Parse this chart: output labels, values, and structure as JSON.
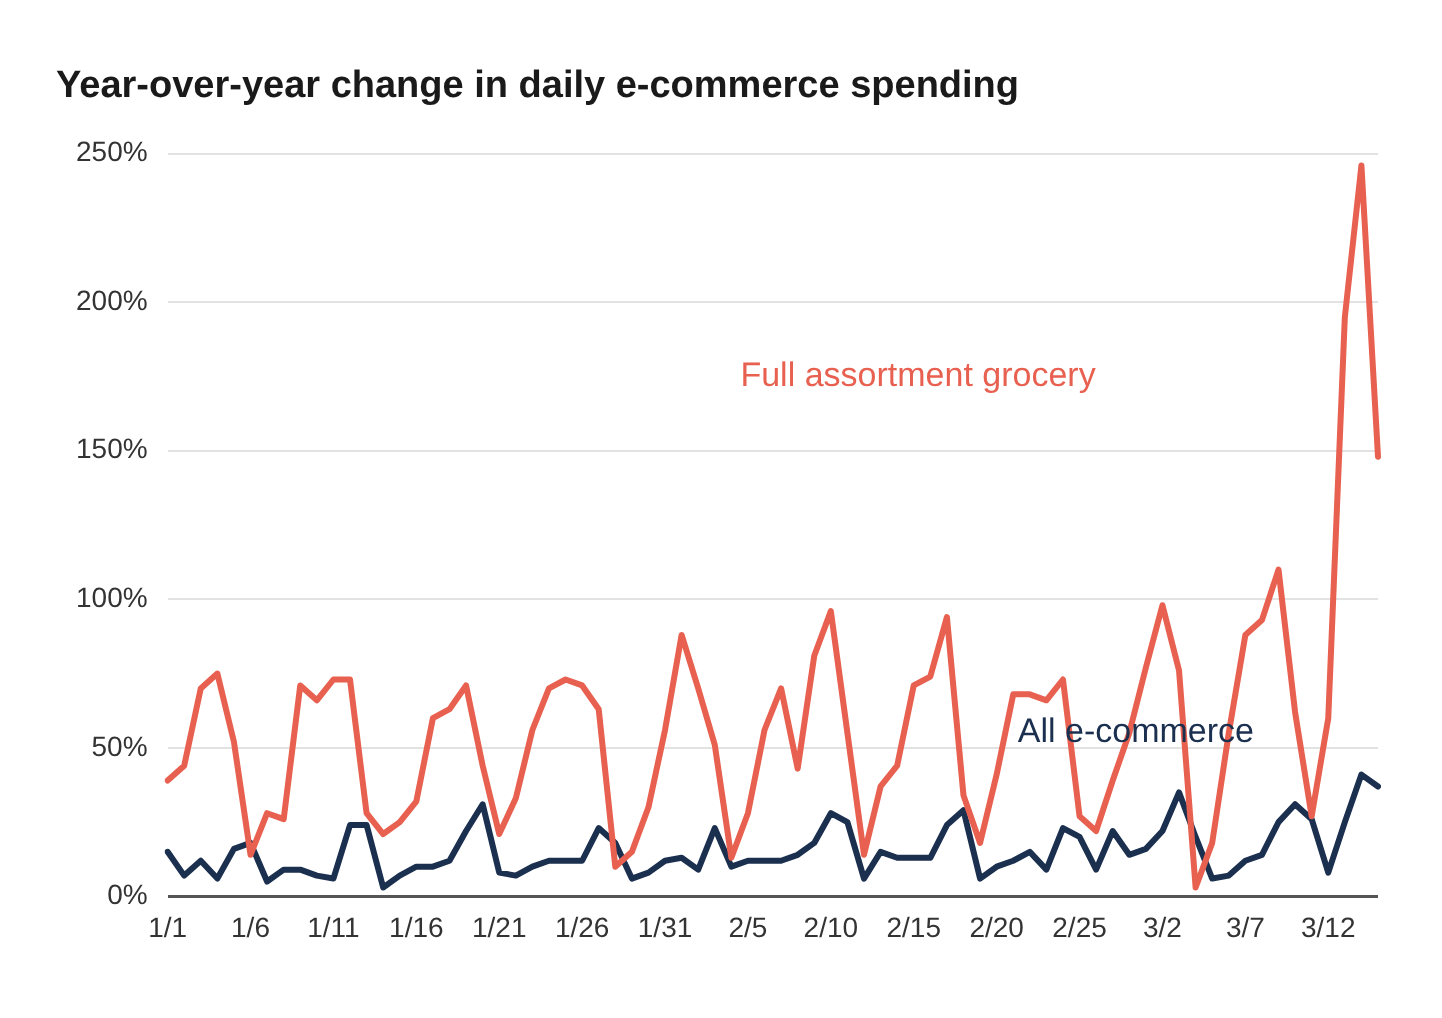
{
  "chart_data": {
    "type": "line",
    "title": "Year-over-year change in daily e-commerce spending",
    "categories": [
      "1/1",
      null,
      null,
      null,
      null,
      "1/6",
      null,
      null,
      null,
      null,
      "1/11",
      null,
      null,
      null,
      null,
      "1/16",
      null,
      null,
      null,
      null,
      "1/21",
      null,
      null,
      null,
      null,
      "1/26",
      null,
      null,
      null,
      null,
      "1/31",
      null,
      null,
      null,
      null,
      "2/5",
      null,
      null,
      null,
      null,
      "2/10",
      null,
      null,
      null,
      null,
      "2/15",
      null,
      null,
      null,
      null,
      "2/20",
      null,
      null,
      null,
      null,
      "2/25",
      null,
      null,
      null,
      null,
      "3/2",
      null,
      null,
      null,
      null,
      "3/7",
      null,
      null,
      null,
      null,
      "3/12",
      null,
      null,
      null
    ],
    "series": [
      {
        "name": "Full assortment grocery",
        "color": "#e8604f",
        "values": [
          39,
          44,
          70,
          75,
          52,
          14,
          28,
          26,
          71,
          66,
          73,
          73,
          28,
          21,
          25,
          32,
          60,
          63,
          71,
          44,
          21,
          33,
          56,
          70,
          73,
          71,
          63,
          10,
          15,
          30,
          56,
          88,
          70,
          51,
          13,
          28,
          56,
          70,
          43,
          81,
          96,
          55,
          14,
          37,
          44,
          71,
          74,
          94,
          34,
          18,
          41,
          68,
          68,
          66,
          73,
          27,
          22,
          39,
          55,
          77,
          98,
          76,
          3,
          18,
          55,
          88,
          93,
          110,
          62,
          27,
          60,
          195,
          246,
          148
        ]
      },
      {
        "name": "All e-commerce",
        "color": "#1b2f4f",
        "values": [
          15,
          7,
          12,
          6,
          16,
          18,
          5,
          9,
          9,
          7,
          6,
          24,
          24,
          3,
          7,
          10,
          10,
          12,
          22,
          31,
          8,
          7,
          10,
          12,
          12,
          12,
          23,
          18,
          6,
          8,
          12,
          13,
          9,
          23,
          10,
          12,
          12,
          12,
          14,
          18,
          28,
          25,
          6,
          15,
          13,
          13,
          13,
          24,
          29,
          6,
          10,
          12,
          15,
          9,
          23,
          20,
          9,
          22,
          14,
          16,
          22,
          35,
          20,
          6,
          7,
          12,
          14,
          25,
          31,
          26,
          8,
          25,
          41,
          37
        ]
      }
    ],
    "ylim": [
      0,
      250
    ],
    "yticks": [
      {
        "value": 0,
        "label": "0%"
      },
      {
        "value": 50,
        "label": "50%"
      },
      {
        "value": 100,
        "label": "100%"
      },
      {
        "value": 150,
        "label": "150%"
      },
      {
        "value": 200,
        "label": "200%"
      },
      {
        "value": 250,
        "label": "250%"
      }
    ],
    "grid": "y",
    "legend": false,
    "marker": "none",
    "line_style": "solid"
  }
}
